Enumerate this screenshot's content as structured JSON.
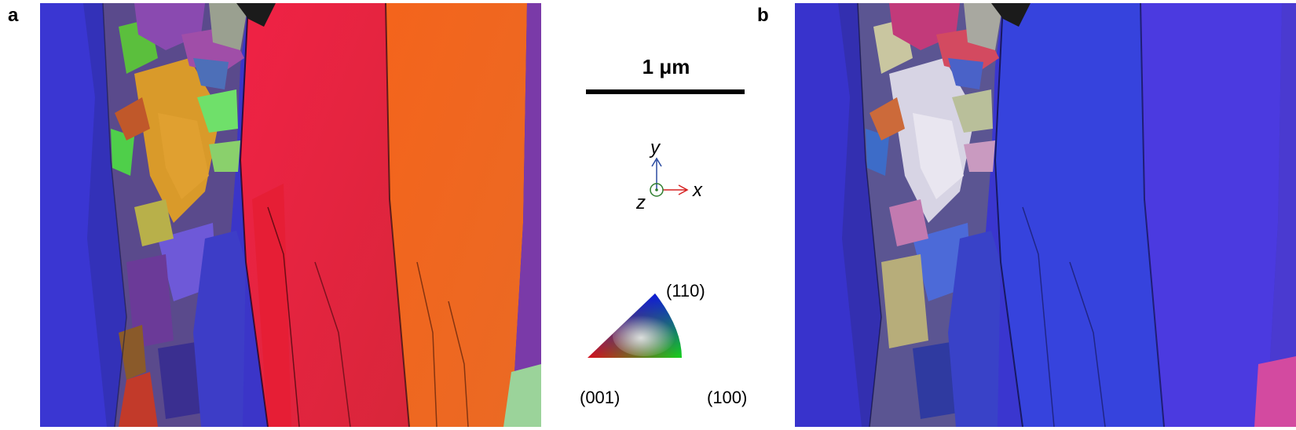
{
  "panels": [
    {
      "label": "a",
      "description_hint": ""
    },
    {
      "label": "b",
      "description_hint": ""
    }
  ],
  "scale_bar": {
    "label": "1 μm"
  },
  "axes": {
    "x": "x",
    "y": "y",
    "z": "z"
  },
  "ipf_key": {
    "top": "(110)",
    "bottom_left": "(001)",
    "bottom_right": "(100)"
  },
  "colors": {
    "blue_grain": "#3a35d6",
    "red_grain": "#e8233f",
    "orange_grain": "#f06a1e",
    "x_axis": "#d62020",
    "y_axis": "#2a4aa0",
    "z_axis": "#2e7d2e"
  }
}
